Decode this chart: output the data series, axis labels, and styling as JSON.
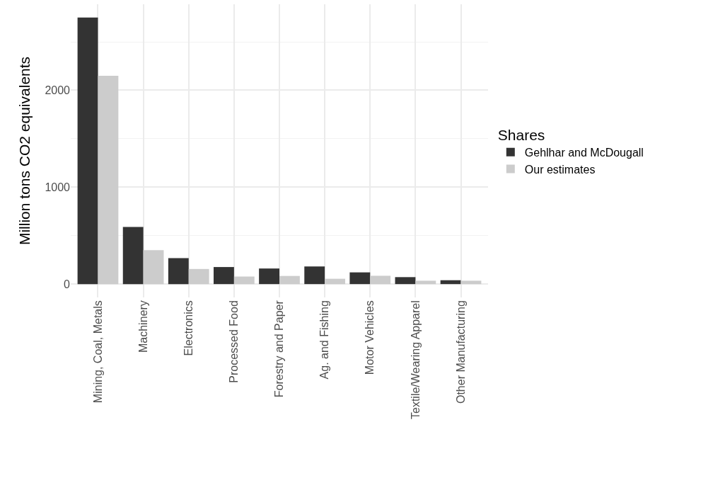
{
  "chart_data": {
    "type": "bar",
    "ylabel": "Million tons CO2 equivalents",
    "legend_title": "Shares",
    "categories": [
      "Mining, Coal, Metals",
      "Machinery",
      "Electronics",
      "Processed Food",
      "Forestry and Paper",
      "Ag. and Fishing",
      "Motor Vehicles",
      "Textile/Wearing Apparel",
      "Other Manufacturing"
    ],
    "series": [
      {
        "name": "Gehlhar and McDougall",
        "color": "#333333",
        "values": [
          2750,
          590,
          268,
          176,
          161,
          182,
          121,
          72,
          40
        ]
      },
      {
        "name": "Our estimates",
        "color": "#cccccc",
        "values": [
          2150,
          350,
          156,
          78,
          84,
          55,
          86,
          35,
          35
        ]
      }
    ],
    "ylim": [
      -137.5,
      2887.5
    ],
    "yticks": [
      0,
      1000,
      2000
    ],
    "grid": true,
    "legend": "right"
  }
}
